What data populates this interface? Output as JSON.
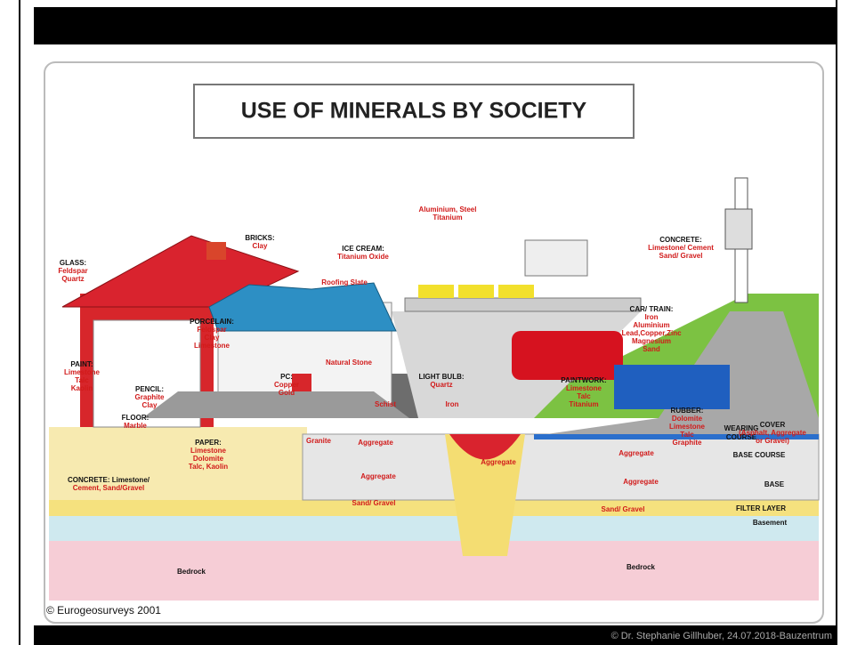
{
  "slide": {
    "footer": "© Dr. Stephanie Gillhuber, 24.07.2018-Bauzentrum",
    "figure": {
      "title": "USE OF MINERALS BY SOCIETY",
      "credit": "© Eurogeosurveys 2001",
      "labels": [
        {
          "heading": "BRICKS:",
          "items": [
            "Clay"
          ]
        },
        {
          "heading": "GLASS:",
          "items": [
            "Feldspar",
            "Quartz"
          ]
        },
        {
          "heading": "ICE CREAM:",
          "items": [
            "Titanium Oxide"
          ]
        },
        {
          "items": [
            "Aluminium, Steel",
            "Titanium"
          ]
        },
        {
          "heading": "CONCRETE:",
          "items": [
            "Limestone/ Cement",
            "Sand/ Gravel"
          ]
        },
        {
          "items": [
            "Roofing Slate"
          ]
        },
        {
          "heading": "PORCELAIN:",
          "items": [
            "Feldspar",
            "Clay",
            "Limestone"
          ]
        },
        {
          "heading": "CAR/ TRAIN:",
          "items": [
            "Iron",
            "Aluminium",
            "Lead,Copper,Zinc",
            "Magnesium",
            "Sand"
          ]
        },
        {
          "heading": "PAINT:",
          "items": [
            "Limestone",
            "Talc",
            "Kaolin"
          ]
        },
        {
          "heading": "PENCIL:",
          "items": [
            "Graphite",
            "Clay"
          ]
        },
        {
          "heading": "PC:",
          "items": [
            "Copper",
            "Gold"
          ]
        },
        {
          "items": [
            "Natural Stone"
          ]
        },
        {
          "heading": "LIGHT BULB:",
          "items": [
            "Quartz"
          ]
        },
        {
          "heading": "PAINTWORK:",
          "items": [
            "Limestone",
            "Talc",
            "Titanium"
          ]
        },
        {
          "heading": "FLOOR:",
          "items": [
            "Marble"
          ]
        },
        {
          "items": [
            "Schist"
          ]
        },
        {
          "items": [
            "Iron"
          ]
        },
        {
          "heading": "RUBBER:",
          "items": [
            "Dolomite",
            "Limestone",
            "Talc",
            "Graphite"
          ]
        },
        {
          "heading": "WEARING",
          "items": []
        },
        {
          "heading": "COURSE",
          "items": []
        },
        {
          "heading": "COVER",
          "items": [
            "(Asphalt, Aggregate",
            "or Gravel)"
          ]
        },
        {
          "heading": "PAPER:",
          "items": [
            "Limestone",
            "Dolomite",
            "Talc, Kaolin"
          ]
        },
        {
          "items": [
            "Granite"
          ]
        },
        {
          "heading": "CONCRETE: Limestone/",
          "items": [
            "Cement, Sand/Gravel"
          ]
        }
      ],
      "layers": [
        "Aggregate",
        "Aggregate",
        "Aggregate",
        "Aggregate",
        "Aggregate",
        "Sand/ Gravel",
        "Sand/ Gravel",
        "Bedrock",
        "Bedrock",
        "BASE COURSE",
        "BASE",
        "FILTER LAYER",
        "Basement"
      ]
    }
  }
}
